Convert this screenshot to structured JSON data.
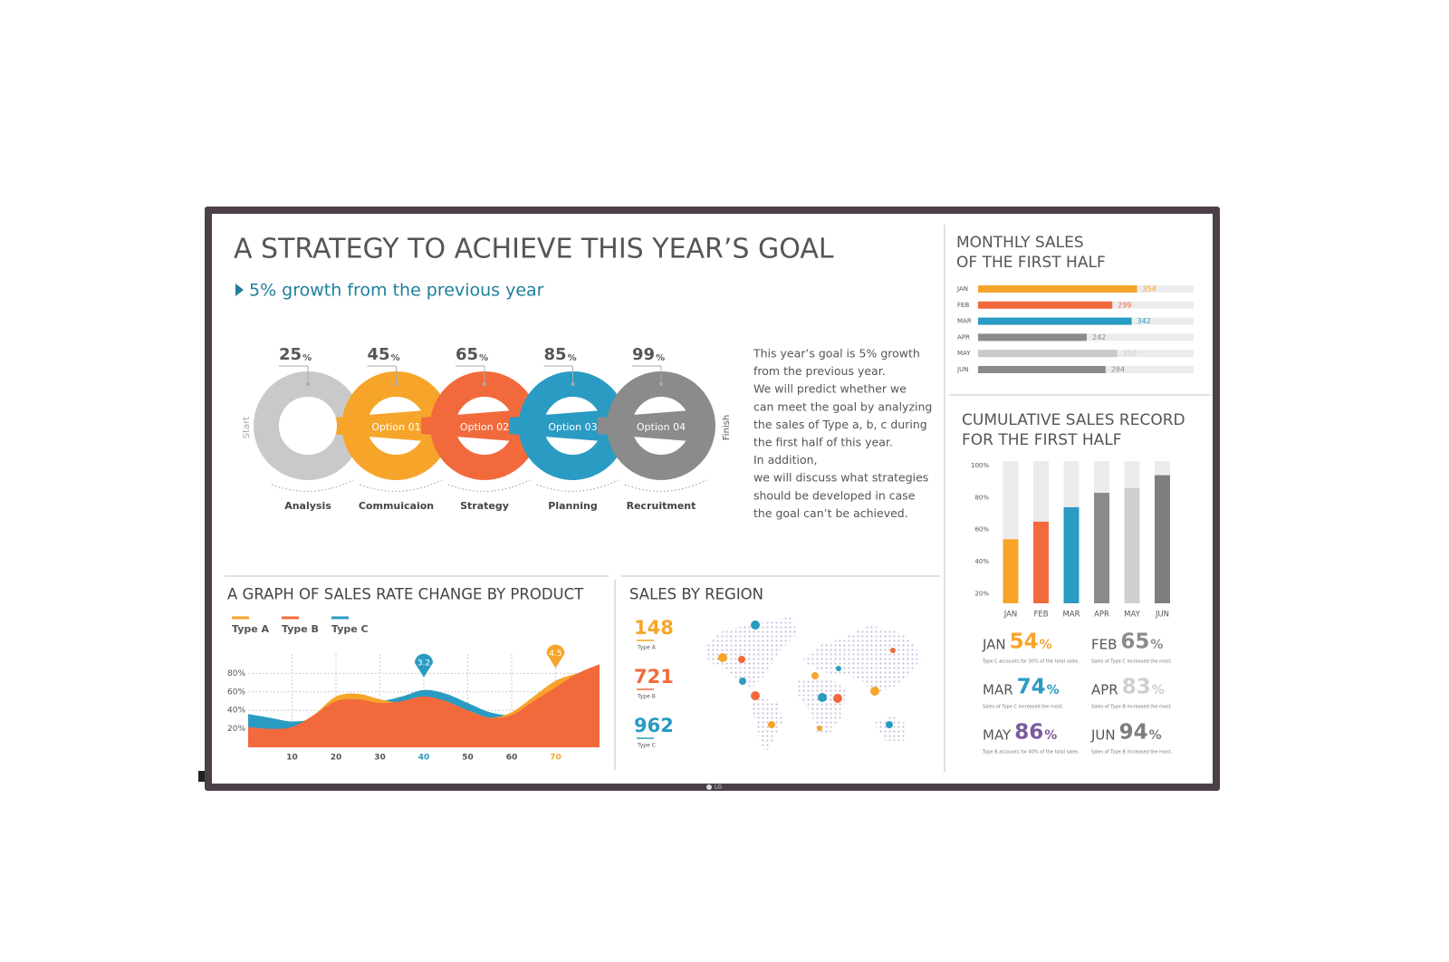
{
  "brand": "LG",
  "header": {
    "title": "A STRATEGY TO ACHIEVE THIS YEAR’S GOAL",
    "subtitle": "5% growth from the previous year"
  },
  "process": {
    "start": "Start",
    "finish": "Finish",
    "unit": "%",
    "steps": [
      {
        "value": 25,
        "label": "Analysis",
        "color": "#c9c9c9"
      },
      {
        "value": 45,
        "label": "Commuicaion",
        "option": "Option 01",
        "color": "#f6a52a"
      },
      {
        "value": 65,
        "label": "Strategy",
        "option": "Option 02",
        "color": "#f26a3c"
      },
      {
        "value": 85,
        "label": "Planning",
        "option": "Option 03",
        "color": "#2a9bc2"
      },
      {
        "value": 99,
        "label": "Recruitment",
        "option": "Option 04",
        "color": "#8b8b8b"
      }
    ],
    "description": [
      "This year’s goal is 5% growth",
      "from the previous year.",
      "We will predict whether we",
      "can meet the goal by analyzing",
      "the sales of Type a, b, c during",
      "the first half of this year.",
      "In addition,",
      "we will discuss what strategies",
      "should be developed in case",
      "the goal can’t be achieved."
    ]
  },
  "chart_data": [
    {
      "type": "hbar",
      "title": [
        "MONTHLY SALES",
        "OF THE FIRST HALF"
      ],
      "categories": [
        "JAN",
        "FEB",
        "MAR",
        "APR",
        "MAY",
        "JUN"
      ],
      "values": [
        354,
        299,
        342,
        242,
        310,
        284
      ],
      "colors": [
        "#f6a52a",
        "#f26a3c",
        "#2a9bc2",
        "#8b8b8b",
        "#c9c9c9",
        "#8b8b8b"
      ],
      "xlim": [
        0,
        480
      ]
    },
    {
      "type": "bar",
      "title": [
        "CUMULATIVE SALES RECORD",
        "FOR THE FIRST HALF"
      ],
      "categories": [
        "JAN",
        "FEB",
        "MAR",
        "APR",
        "MAY",
        "JUN"
      ],
      "values": [
        54,
        65,
        74,
        83,
        86,
        94
      ],
      "unit": "%",
      "colors": [
        "#f6a52a",
        "#f26a3c",
        "#2a9bc2",
        "#8b8b8b",
        "#cfcfcf",
        "#7d7d7d"
      ],
      "value_label_colors": [
        "#f6a52a",
        "#8b8b8b",
        "#2a9bc2",
        "#cfcfcf",
        "#7a5a9e",
        "#7d7d7d"
      ],
      "notes": [
        "Type C accounts for 50% of the total sales.",
        "Sales of Type C increased the most.",
        "Sales of Type C increased the most.",
        "Sales of Type B increased the most.",
        "Type B accounts for 40% of the total sales.",
        "Sales of Type B increased the most."
      ],
      "ylim": [
        14,
        100
      ],
      "yticks": [
        {
          "value": 20,
          "label": "20%"
        },
        {
          "value": 40,
          "label": "40%"
        },
        {
          "value": 60,
          "label": "60%"
        },
        {
          "value": 80,
          "label": "80%"
        },
        {
          "value": 100,
          "label": "100%"
        }
      ]
    },
    {
      "type": "area",
      "title": "A GRAPH OF SALES RATE CHANGE BY PRODUCT",
      "x": [
        0,
        5,
        10,
        15,
        20,
        25,
        30,
        35,
        40,
        45,
        50,
        55,
        60,
        65,
        70,
        75,
        80
      ],
      "series": [
        {
          "name": "Type A",
          "color": "#f6a52a",
          "values": [
            20,
            18,
            20,
            35,
            55,
            58,
            52,
            48,
            50,
            45,
            40,
            32,
            38,
            55,
            72,
            80,
            85
          ]
        },
        {
          "name": "Type B",
          "color": "#f26a3c",
          "values": [
            22,
            20,
            22,
            35,
            50,
            52,
            48,
            50,
            55,
            50,
            40,
            32,
            35,
            50,
            65,
            80,
            90
          ]
        },
        {
          "name": "Type C",
          "color": "#2a9bc2",
          "values": [
            36,
            32,
            28,
            32,
            50,
            52,
            50,
            55,
            62,
            58,
            48,
            38,
            35,
            42,
            60,
            75,
            88
          ]
        }
      ],
      "annotations": [
        {
          "x": 40,
          "series": 2,
          "value": 3.2
        },
        {
          "x": 70,
          "series": 0,
          "value": 4.5
        }
      ],
      "xlim": [
        0,
        80
      ],
      "xticks": [
        10,
        20,
        30,
        40,
        50,
        60,
        70
      ],
      "ylim": [
        0,
        100
      ],
      "yticks": [
        {
          "value": 20,
          "label": "20%"
        },
        {
          "value": 40,
          "label": "40%"
        },
        {
          "value": 60,
          "label": "60%"
        },
        {
          "value": 80,
          "label": "80%"
        }
      ],
      "grid": true
    }
  ],
  "region": {
    "title": "SALES BY REGION",
    "items": [
      {
        "value": 148,
        "label": "Type A",
        "color": "#f6a52a"
      },
      {
        "value": 721,
        "label": "Type B",
        "color": "#f26a3c"
      },
      {
        "value": 962,
        "label": "Type C",
        "color": "#2a9bc2"
      }
    ]
  }
}
